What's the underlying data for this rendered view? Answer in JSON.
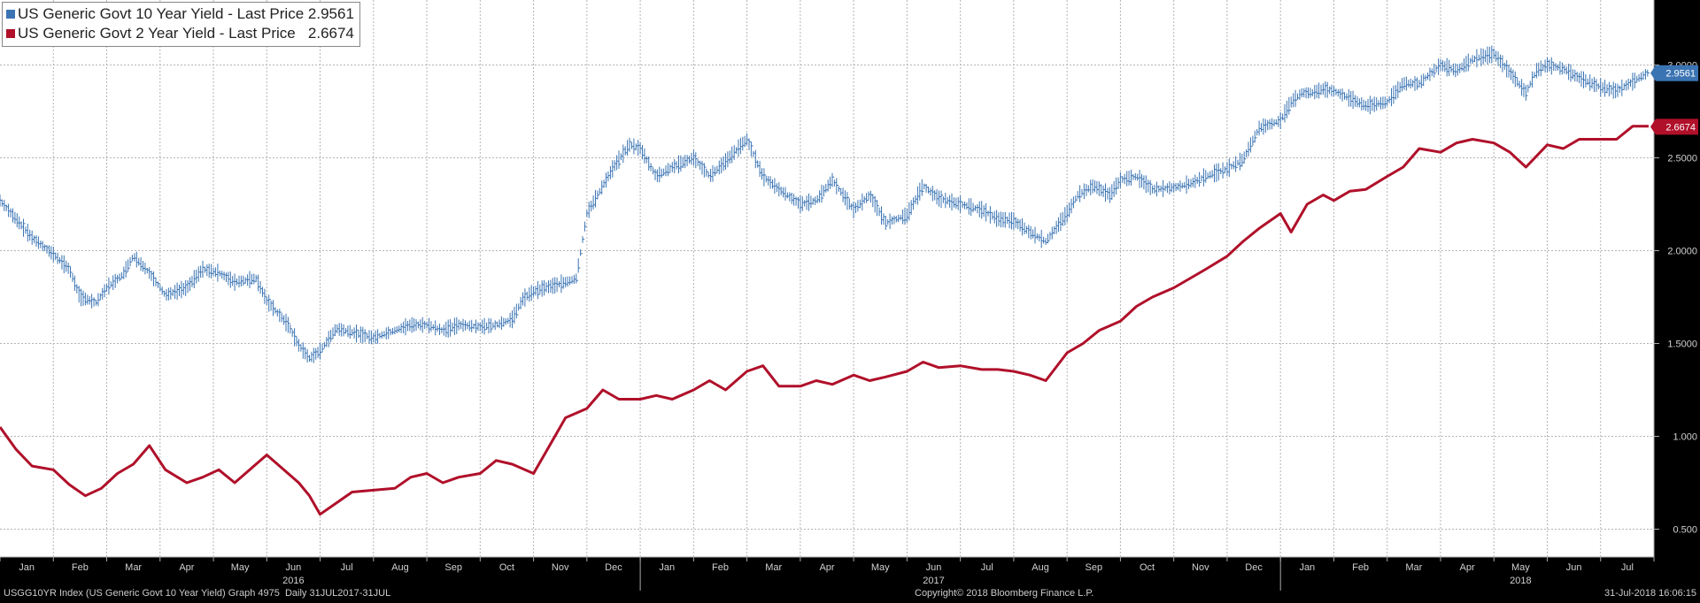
{
  "legend": [
    {
      "name": "US Generic Govt 10 Year Yield - Last Price",
      "value": "2.9561",
      "color": "#3b74b3"
    },
    {
      "name": "US Generic Govt 2 Year Yield - Last Price",
      "value": "2.6674",
      "color": "#b0102a"
    }
  ],
  "footer": {
    "left": "USGG10YR Index (US Generic Govt 10 Year Yield) Graph 4975  Daily 31JUL2017-31JUL",
    "center": "Copyright© 2018 Bloomberg Finance L.P.",
    "right": "31-Jul-2018 16:06:15"
  },
  "chart_data": {
    "type": "line",
    "title": "",
    "xlabel": "",
    "ylabel": "",
    "ylim": [
      0.35,
      3.35
    ],
    "y_ticks": [
      "0.500",
      "1.000",
      "1.5000",
      "2.0000",
      "2.5000",
      "3.0000"
    ],
    "x_tick_labels": [
      "Jan",
      "Feb",
      "Mar",
      "Apr",
      "May",
      "Jun",
      "Jul",
      "Aug",
      "Sep",
      "Oct",
      "Nov",
      "Dec",
      "Jan",
      "Feb",
      "Mar",
      "Apr",
      "May",
      "Jun",
      "Jul",
      "Aug",
      "Sep",
      "Oct",
      "Nov",
      "Dec",
      "Jan",
      "Feb",
      "Mar",
      "Apr",
      "May",
      "Jun",
      "Jul"
    ],
    "year_labels": [
      {
        "year": "2016",
        "month_index": 5
      },
      {
        "year": "2017",
        "month_index": 17
      },
      {
        "year": "2018",
        "month_index": 28
      }
    ],
    "months": 31,
    "grid": true,
    "legend_position": "top-left",
    "last_price_labels": [
      "2.9561",
      "2.6674"
    ],
    "series": [
      {
        "name": "US Generic Govt 10 Year Yield - Last Price",
        "style": "bar",
        "color": "#3b74b3",
        "x": [
          0,
          0.3,
          0.6,
          1.0,
          1.3,
          1.5,
          1.8,
          2.0,
          2.3,
          2.5,
          2.8,
          3.1,
          3.5,
          3.8,
          4.1,
          4.4,
          4.8,
          5.0,
          5.4,
          5.6,
          5.8,
          6.0,
          6.3,
          6.6,
          7.0,
          7.4,
          7.7,
          8.0,
          8.3,
          8.6,
          9.0,
          9.3,
          9.6,
          9.8,
          10.0,
          10.2,
          10.5,
          10.8,
          11.0,
          11.3,
          11.5,
          11.8,
          12.0,
          12.3,
          12.6,
          13.0,
          13.3,
          13.6,
          14.0,
          14.3,
          14.6,
          15.0,
          15.3,
          15.6,
          16.0,
          16.3,
          16.6,
          17.0,
          17.3,
          17.6,
          18.0,
          18.4,
          18.7,
          19.0,
          19.3,
          19.6,
          20.0,
          20.2,
          20.5,
          20.8,
          21.0,
          21.3,
          21.6,
          22.0,
          22.3,
          22.6,
          23.0,
          23.3,
          23.6,
          24.0,
          24.2,
          24.4,
          24.6,
          24.8,
          25.0,
          25.3,
          25.6,
          26.0,
          26.3,
          26.6,
          27.0,
          27.3,
          27.6,
          28.0,
          28.3,
          28.6,
          28.8,
          29.0,
          29.3,
          29.6,
          30.0,
          30.3,
          30.6,
          30.9
        ],
        "values": [
          2.27,
          2.17,
          2.07,
          1.98,
          1.9,
          1.75,
          1.72,
          1.8,
          1.87,
          1.97,
          1.88,
          1.76,
          1.8,
          1.9,
          1.88,
          1.83,
          1.85,
          1.73,
          1.6,
          1.49,
          1.42,
          1.46,
          1.58,
          1.56,
          1.53,
          1.57,
          1.6,
          1.6,
          1.57,
          1.6,
          1.59,
          1.6,
          1.63,
          1.74,
          1.78,
          1.8,
          1.82,
          1.85,
          2.2,
          2.35,
          2.45,
          2.57,
          2.55,
          2.4,
          2.45,
          2.5,
          2.4,
          2.48,
          2.6,
          2.4,
          2.33,
          2.25,
          2.27,
          2.38,
          2.22,
          2.3,
          2.15,
          2.19,
          2.35,
          2.28,
          2.25,
          2.22,
          2.17,
          2.16,
          2.1,
          2.05,
          2.2,
          2.3,
          2.35,
          2.3,
          2.38,
          2.4,
          2.33,
          2.34,
          2.36,
          2.4,
          2.44,
          2.49,
          2.66,
          2.7,
          2.8,
          2.85,
          2.85,
          2.87,
          2.86,
          2.82,
          2.78,
          2.8,
          2.9,
          2.9,
          3.0,
          2.97,
          3.03,
          3.06,
          2.96,
          2.85,
          2.97,
          3.0,
          2.98,
          2.93,
          2.88,
          2.86,
          2.91,
          2.96
        ]
      },
      {
        "name": "US Generic Govt 2 Year Yield - Last Price",
        "style": "line",
        "color": "#b0102a",
        "x": [
          0,
          0.3,
          0.6,
          1.0,
          1.3,
          1.6,
          1.9,
          2.2,
          2.5,
          2.8,
          3.1,
          3.5,
          3.8,
          4.1,
          4.4,
          4.8,
          5.0,
          5.4,
          5.6,
          5.8,
          6.0,
          6.3,
          6.6,
          7.0,
          7.4,
          7.7,
          8.0,
          8.3,
          8.6,
          9.0,
          9.3,
          9.6,
          10.0,
          10.3,
          10.6,
          11.0,
          11.3,
          11.6,
          12.0,
          12.3,
          12.6,
          13.0,
          13.3,
          13.6,
          14.0,
          14.3,
          14.6,
          15.0,
          15.3,
          15.6,
          16.0,
          16.3,
          16.6,
          17.0,
          17.3,
          17.6,
          18.0,
          18.4,
          18.7,
          19.0,
          19.3,
          19.6,
          20.0,
          20.3,
          20.6,
          21.0,
          21.3,
          21.6,
          22.0,
          22.3,
          22.6,
          23.0,
          23.3,
          23.6,
          24.0,
          24.2,
          24.5,
          24.8,
          25.0,
          25.3,
          25.6,
          26.0,
          26.3,
          26.6,
          27.0,
          27.3,
          27.6,
          28.0,
          28.3,
          28.6,
          29.0,
          29.3,
          29.6,
          30.0,
          30.3,
          30.6,
          30.9
        ],
        "values": [
          1.05,
          0.93,
          0.84,
          0.82,
          0.74,
          0.68,
          0.72,
          0.8,
          0.85,
          0.95,
          0.82,
          0.75,
          0.78,
          0.82,
          0.75,
          0.85,
          0.9,
          0.8,
          0.75,
          0.68,
          0.58,
          0.64,
          0.7,
          0.71,
          0.72,
          0.78,
          0.8,
          0.75,
          0.78,
          0.8,
          0.87,
          0.85,
          0.8,
          0.95,
          1.1,
          1.15,
          1.25,
          1.2,
          1.2,
          1.22,
          1.2,
          1.25,
          1.3,
          1.25,
          1.35,
          1.38,
          1.27,
          1.27,
          1.3,
          1.28,
          1.33,
          1.3,
          1.32,
          1.35,
          1.4,
          1.37,
          1.38,
          1.36,
          1.36,
          1.35,
          1.33,
          1.3,
          1.45,
          1.5,
          1.57,
          1.62,
          1.7,
          1.75,
          1.8,
          1.85,
          1.9,
          1.97,
          2.05,
          2.12,
          2.2,
          2.1,
          2.25,
          2.3,
          2.27,
          2.32,
          2.33,
          2.4,
          2.45,
          2.55,
          2.53,
          2.58,
          2.6,
          2.58,
          2.53,
          2.45,
          2.57,
          2.55,
          2.6,
          2.6,
          2.6,
          2.67,
          2.67
        ]
      }
    ]
  }
}
